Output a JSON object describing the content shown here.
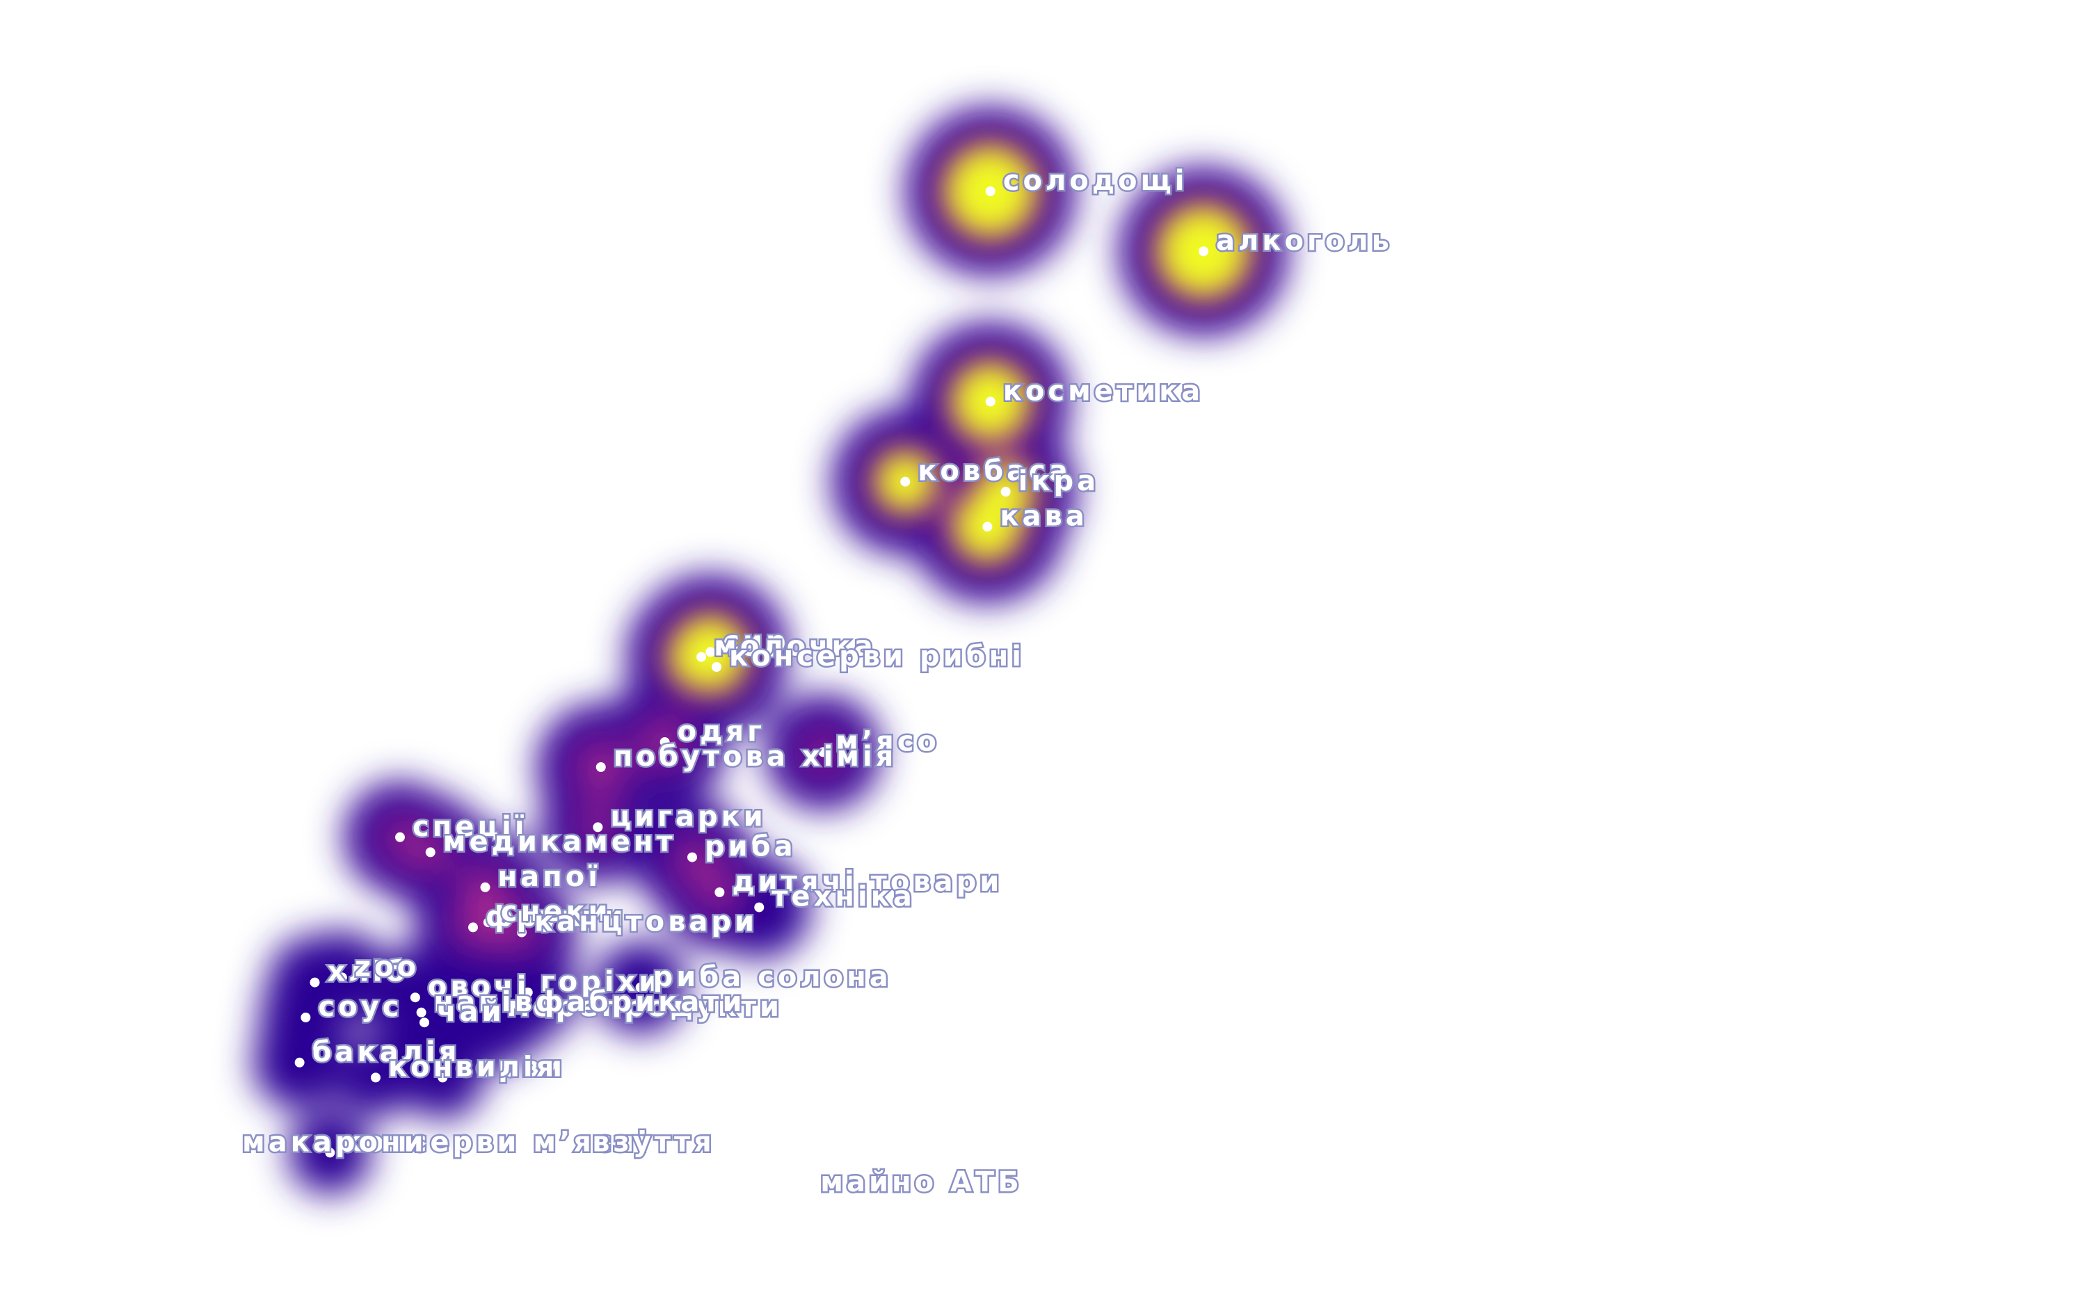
{
  "chart_data": {
    "type": "scatter",
    "colormap": "plasma",
    "colors": {
      "low": "#2c0594",
      "mid": "#b12a90",
      "high": "#f0f921",
      "label_outline": "#8a8fc4"
    },
    "points": [
      {
        "label": "солодощі",
        "x": 2.0,
        "y": 8.12,
        "weight": 1.0
      },
      {
        "label": "алкоголь",
        "x": 2.7,
        "y": 8.0,
        "weight": 1.0
      },
      {
        "label": "косметика",
        "x": 2.0,
        "y": 7.7,
        "weight": 0.82
      },
      {
        "label": "ковбаса",
        "x": 1.72,
        "y": 7.54,
        "weight": 0.6
      },
      {
        "label": "ікра",
        "x": 2.05,
        "y": 7.52,
        "weight": 0.55
      },
      {
        "label": "кава",
        "x": 1.99,
        "y": 7.45,
        "weight": 0.7
      },
      {
        "label": "сир",
        "x": 1.08,
        "y": 7.2,
        "weight": 0.75
      },
      {
        "label": "молочка",
        "x": 1.05,
        "y": 7.19,
        "weight": 0.65
      },
      {
        "label": "консерви рибні",
        "x": 1.1,
        "y": 7.17,
        "weight": 0.45
      },
      {
        "label": "м’ясо",
        "x": 1.45,
        "y": 7.0,
        "weight": 0.22
      },
      {
        "label": "одяг",
        "x": 0.93,
        "y": 7.02,
        "weight": 0.32
      },
      {
        "label": "побутова хімія",
        "x": 0.72,
        "y": 6.97,
        "weight": 0.35
      },
      {
        "label": "цигарки",
        "x": 0.71,
        "y": 6.85,
        "weight": 0.2
      },
      {
        "label": "риба",
        "x": 1.02,
        "y": 6.79,
        "weight": 0.22
      },
      {
        "label": "дитячі товари",
        "x": 1.11,
        "y": 6.72,
        "weight": 0.22
      },
      {
        "label": "техніка",
        "x": 1.24,
        "y": 6.69,
        "weight": 0.12
      },
      {
        "label": "спеції",
        "x": 0.06,
        "y": 6.83,
        "weight": 0.18
      },
      {
        "label": "медикамент",
        "x": 0.16,
        "y": 6.8,
        "weight": 0.2
      },
      {
        "label": "напої",
        "x": 0.34,
        "y": 6.73,
        "weight": 0.25
      },
      {
        "label": "фрукти",
        "x": 0.3,
        "y": 6.65,
        "weight": 0.2
      },
      {
        "label": "снеки",
        "x": 0.35,
        "y": 6.66,
        "weight": 0.25
      },
      {
        "label": "канцтовари",
        "x": 0.46,
        "y": 6.64,
        "weight": 0.18
      },
      {
        "label": "горіхи",
        "x": 0.48,
        "y": 6.52,
        "weight": 0.1
      },
      {
        "label": "морепродукти",
        "x": 0.37,
        "y": 6.47,
        "weight": 0.1
      },
      {
        "label": "риба солона",
        "x": 0.85,
        "y": 6.53,
        "weight": 0.06
      },
      {
        "label": "овочі",
        "x": 0.11,
        "y": 6.51,
        "weight": 0.1
      },
      {
        "label": "напівфабрикати",
        "x": 0.13,
        "y": 6.48,
        "weight": 0.1
      },
      {
        "label": "чай",
        "x": 0.14,
        "y": 6.46,
        "weight": 0.1
      },
      {
        "label": "хліб",
        "x": -0.22,
        "y": 6.54,
        "weight": 0.06
      },
      {
        "label": "zoo",
        "x": -0.13,
        "y": 6.55,
        "weight": 0.06
      },
      {
        "label": "соус",
        "x": -0.25,
        "y": 6.47,
        "weight": 0.06
      },
      {
        "label": "бакалія",
        "x": -0.27,
        "y": 6.38,
        "weight": 0.06
      },
      {
        "label": "консерви",
        "x": -0.02,
        "y": 6.35,
        "weight": 0.01
      },
      {
        "label": "вилія",
        "x": 0.2,
        "y": 6.35,
        "weight": 0.02
      },
      {
        "label": "консерви м’ясні",
        "x": -0.17,
        "y": 6.2,
        "weight": 0.02
      },
      {
        "label": "макарони",
        "x": -0.5,
        "y": 6.2,
        "weight": 0.0
      },
      {
        "label": "взуття",
        "x": 0.65,
        "y": 6.2,
        "weight": 0.0
      },
      {
        "label": "майно АТБ",
        "x": 1.4,
        "y": 6.12,
        "weight": 0.0
      }
    ]
  }
}
